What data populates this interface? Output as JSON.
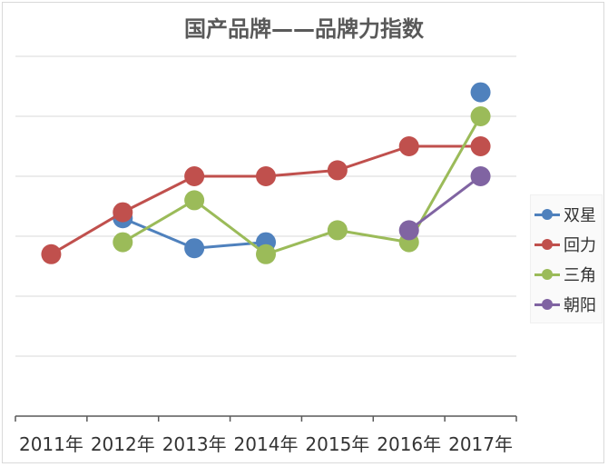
{
  "chart_data": {
    "type": "line",
    "title": "国产品牌——品牌力指数",
    "categories": [
      "2011年",
      "2012年",
      "2013年",
      "2014年",
      "2015年",
      "2016年",
      "2017年"
    ],
    "ylim": [
      0,
      6
    ],
    "grid": true,
    "legend_position": "right",
    "series": [
      {
        "name": "双星",
        "color": "#4f81bd",
        "values": [
          null,
          3.3,
          2.8,
          2.9,
          null,
          null,
          5.4
        ]
      },
      {
        "name": "回力",
        "color": "#c0504d",
        "values": [
          2.7,
          3.4,
          4.0,
          4.0,
          4.1,
          4.5,
          4.5
        ]
      },
      {
        "name": "三角",
        "color": "#9bbb59",
        "values": [
          null,
          2.9,
          3.6,
          2.7,
          3.1,
          2.9,
          5.0
        ]
      },
      {
        "name": "朝阳",
        "color": "#8064a2",
        "values": [
          null,
          null,
          null,
          null,
          null,
          3.1,
          4.0
        ]
      }
    ]
  }
}
